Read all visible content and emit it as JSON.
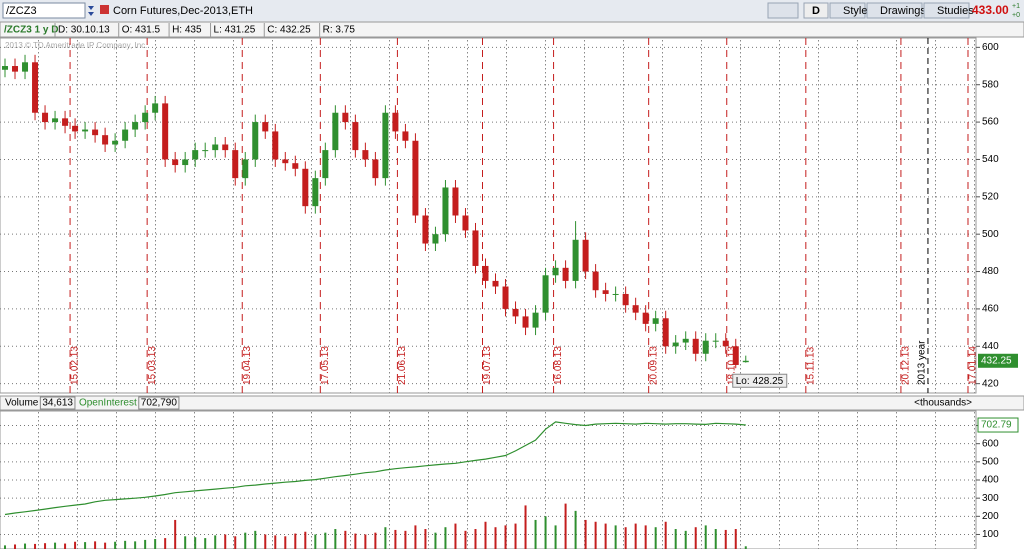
{
  "ui": {
    "symbol": "/ZCZ3",
    "description": "Corn Futures,Dec-2013,ETH",
    "buttons": [
      "D",
      "Style",
      "Drawings",
      "Studies"
    ],
    "last": "433.00",
    "change": [
      "+1",
      "+0"
    ],
    "info": {
      "study": "/ZCZ3 1 y D",
      "fields": [
        "D: 30.10.13",
        "O: 431.5",
        "H: 435",
        "L: 431.25",
        "C: 432.25",
        "R: 3.75"
      ]
    },
    "watermark": "2013 © TD Ameritrade IP Company, Inc."
  },
  "chart_data": [
    {
      "type": "candlestick",
      "up_color": "#2f8f2f",
      "down_color": "#c41e1e",
      "open": [
        588,
        590,
        587,
        592,
        565,
        560,
        562,
        558,
        555,
        556,
        553,
        548,
        550,
        556,
        560,
        565,
        570,
        540,
        537,
        540,
        545,
        545,
        548,
        545,
        530,
        540,
        560,
        555,
        540,
        538,
        535,
        515,
        530,
        545,
        565,
        560,
        545,
        540,
        530,
        565,
        555,
        550,
        510,
        495,
        500,
        525,
        510,
        502,
        483,
        475,
        472,
        460,
        456,
        450,
        458,
        478,
        482,
        475,
        497,
        480,
        470,
        468,
        468,
        462,
        458,
        452,
        455,
        440,
        442,
        444,
        436,
        443,
        443,
        440,
        431.5
      ],
      "high": [
        594,
        594,
        596,
        596,
        569,
        566,
        566,
        562,
        560,
        560,
        557,
        554,
        560,
        564,
        569,
        574,
        574,
        544,
        544,
        549,
        549,
        552,
        552,
        549,
        544,
        564,
        564,
        559,
        544,
        542,
        539,
        534,
        549,
        569,
        569,
        564,
        549,
        544,
        569,
        569,
        559,
        554,
        514,
        504,
        529,
        529,
        514,
        506,
        487,
        479,
        476,
        464,
        460,
        462,
        482,
        486,
        486,
        507,
        501,
        484,
        474,
        472,
        472,
        466,
        462,
        459,
        459,
        446,
        448,
        448,
        447,
        447,
        447,
        444,
        435
      ],
      "low": [
        584,
        583,
        583,
        561,
        556,
        556,
        554,
        551,
        551,
        549,
        544,
        544,
        546,
        552,
        556,
        561,
        536,
        533,
        533,
        536,
        541,
        541,
        541,
        526,
        526,
        536,
        551,
        536,
        534,
        531,
        511,
        511,
        526,
        541,
        556,
        541,
        536,
        526,
        526,
        551,
        546,
        506,
        491,
        491,
        496,
        506,
        498,
        479,
        471,
        468,
        456,
        452,
        446,
        446,
        454,
        474,
        471,
        471,
        476,
        466,
        464,
        464,
        458,
        454,
        448,
        448,
        436,
        436,
        438,
        432,
        432,
        439,
        436,
        428.25,
        431.25
      ],
      "close": [
        590,
        587,
        592,
        565,
        560,
        562,
        558,
        555,
        556,
        553,
        548,
        550,
        556,
        560,
        565,
        570,
        540,
        537,
        540,
        545,
        545,
        548,
        545,
        530,
        540,
        560,
        555,
        540,
        538,
        535,
        515,
        530,
        545,
        565,
        560,
        545,
        540,
        530,
        565,
        555,
        550,
        510,
        495,
        500,
        525,
        510,
        502,
        483,
        475,
        472,
        460,
        456,
        450,
        458,
        478,
        482,
        475,
        497,
        480,
        470,
        468,
        468,
        462,
        458,
        452,
        455,
        440,
        442,
        444,
        436,
        443,
        443,
        440,
        430,
        432.25
      ],
      "xlim": [
        -0.5,
        97
      ],
      "ylim": [
        415,
        605
      ],
      "yticks": [
        420,
        440,
        460,
        480,
        500,
        520,
        540,
        560,
        580,
        600
      ],
      "grid": true,
      "markers": [
        {
          "value": 6.5,
          "label": "15.02.13"
        },
        {
          "value": 14.2,
          "label": "15.03.13"
        },
        {
          "value": 23.7,
          "label": "19.04.13"
        },
        {
          "value": 31.5,
          "label": "17.05.13"
        },
        {
          "value": 39.2,
          "label": "21.06.13"
        },
        {
          "value": 47.7,
          "label": "19.07.13"
        },
        {
          "value": 54.8,
          "label": "16.08.13"
        },
        {
          "value": 64.3,
          "label": "20.09.13"
        },
        {
          "value": 72.1,
          "label": "18.10.13"
        },
        {
          "value": 80,
          "label": "15.11.13"
        },
        {
          "value": 89.5,
          "label": "20.12.13"
        },
        {
          "value": 96.2,
          "label": "17.01.14"
        }
      ],
      "marker_color": "#c41e1e",
      "year_marker": {
        "value": 92.2,
        "label": "2013 year"
      },
      "low_label": "Lo:"
    },
    {
      "type": "bar-line",
      "units_label": "<thousands>",
      "xlim": [
        -0.5,
        97
      ],
      "ylim": [
        20,
        780
      ],
      "yticks": [
        100,
        200,
        300,
        400,
        500,
        600,
        700
      ],
      "grid": true,
      "series": [
        {
          "name": "Volume",
          "header_value": "34,613",
          "color": "#b03030",
          "type": "bar",
          "values": [
            40,
            45,
            50,
            48,
            52,
            55,
            50,
            60,
            58,
            62,
            55,
            60,
            65,
            62,
            70,
            75,
            80,
            180,
            90,
            85,
            80,
            95,
            100,
            90,
            110,
            120,
            100,
            95,
            90,
            105,
            115,
            100,
            110,
            130,
            120,
            105,
            100,
            110,
            140,
            125,
            120,
            150,
            130,
            110,
            140,
            160,
            120,
            130,
            170,
            140,
            150,
            160,
            260,
            180,
            200,
            150,
            270,
            230,
            180,
            170,
            160,
            150,
            140,
            160,
            150,
            140,
            170,
            130,
            120,
            140,
            150,
            130,
            125,
            130,
            35
          ]
        },
        {
          "name": "OpenInterest",
          "header_value": "702,790",
          "color": "#2f8f2f",
          "type": "line",
          "values": [
            210,
            218,
            225,
            232,
            240,
            248,
            255,
            262,
            268,
            280,
            288,
            292,
            296,
            300,
            305,
            312,
            320,
            330,
            335,
            340,
            345,
            350,
            355,
            360,
            368,
            372,
            378,
            383,
            388,
            392,
            398,
            402,
            410,
            418,
            425,
            432,
            440,
            445,
            455,
            462,
            468,
            472,
            478,
            483,
            488,
            492,
            500,
            508,
            515,
            525,
            535,
            560,
            590,
            620,
            680,
            720,
            712,
            705,
            700,
            708,
            710,
            712,
            710,
            708,
            712,
            710,
            708,
            710,
            710,
            708,
            706,
            712,
            710,
            708,
            702.79
          ]
        }
      ]
    }
  ]
}
